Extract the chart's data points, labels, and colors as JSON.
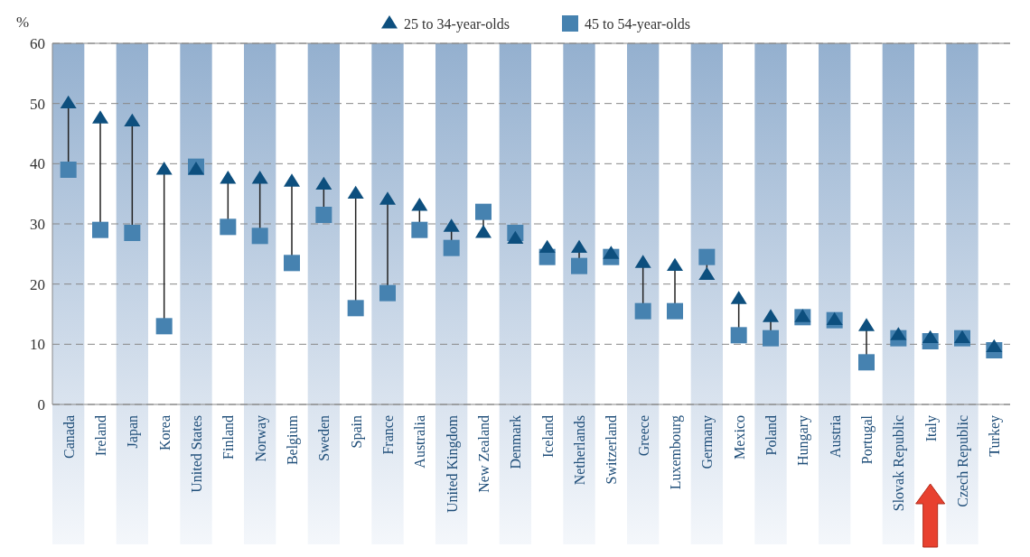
{
  "chart_data": {
    "type": "scatter",
    "ylabel": "%",
    "legend": "top",
    "grid": "y",
    "ylim": [
      0,
      60
    ],
    "yticks": [
      0,
      10,
      20,
      30,
      40,
      50,
      60
    ],
    "categories": [
      "Canada",
      "Ireland",
      "Japan",
      "Korea",
      "United States",
      "Finland",
      "Norway",
      "Belgium",
      "Sweden",
      "Spain",
      "France",
      "Australia",
      "United Kingdom",
      "New Zealand",
      "Denmark",
      "Iceland",
      "Netherlands",
      "Switzerland",
      "Greece",
      "Luxembourg",
      "Germany",
      "Mexico",
      "Poland",
      "Hungary",
      "Austria",
      "Portugal",
      "Slovak Republic",
      "Italy",
      "Czech Republic",
      "Turkey"
    ],
    "bands": [
      {
        "axis": "x",
        "from": "Canada",
        "to": "Canada",
        "color": "#94b0cf"
      },
      {
        "axis": "x",
        "from": "Japan",
        "to": "Japan",
        "color": "#94b0cf"
      },
      {
        "axis": "x",
        "from": "United States",
        "to": "United States",
        "color": "#94b0cf"
      },
      {
        "axis": "x",
        "from": "Norway",
        "to": "Norway",
        "color": "#94b0cf"
      },
      {
        "axis": "x",
        "from": "Sweden",
        "to": "Sweden",
        "color": "#94b0cf"
      },
      {
        "axis": "x",
        "from": "France",
        "to": "France",
        "color": "#94b0cf"
      },
      {
        "axis": "x",
        "from": "United Kingdom",
        "to": "United Kingdom",
        "color": "#94b0cf"
      },
      {
        "axis": "x",
        "from": "Denmark",
        "to": "Denmark",
        "color": "#94b0cf"
      },
      {
        "axis": "x",
        "from": "Netherlands",
        "to": "Netherlands",
        "color": "#94b0cf"
      },
      {
        "axis": "x",
        "from": "Greece",
        "to": "Greece",
        "color": "#94b0cf"
      },
      {
        "axis": "x",
        "from": "Germany",
        "to": "Germany",
        "color": "#94b0cf"
      },
      {
        "axis": "x",
        "from": "Poland",
        "to": "Poland",
        "color": "#94b0cf"
      },
      {
        "axis": "x",
        "from": "Austria",
        "to": "Austria",
        "color": "#94b0cf"
      },
      {
        "axis": "x",
        "from": "Slovak Republic",
        "to": "Slovak Republic",
        "color": "#94b0cf"
      },
      {
        "axis": "x",
        "from": "Czech Republic",
        "to": "Czech Republic",
        "color": "#94b0cf"
      }
    ],
    "series": [
      {
        "name": "25 to 34-year-olds",
        "color": "#0d4f7e",
        "marker": "triangle",
        "values": [
          50,
          47.5,
          47,
          39,
          39,
          37.5,
          37.5,
          37,
          36.5,
          35,
          34,
          33,
          29.5,
          28.5,
          27.5,
          26,
          26,
          25,
          23.5,
          23,
          21.5,
          17.5,
          14.5,
          14.5,
          14,
          13,
          11.5,
          11,
          11,
          9.5
        ]
      },
      {
        "name": "45 to 54-year-olds",
        "color": "#4682b0",
        "marker": "square",
        "values": [
          39,
          29,
          28.5,
          13,
          39.5,
          29.5,
          28,
          23.5,
          31.5,
          16,
          18.5,
          29,
          26,
          32,
          28.5,
          24.5,
          23,
          24.5,
          15.5,
          15.5,
          24.5,
          11.5,
          11,
          14.5,
          14,
          7,
          11,
          10.5,
          11,
          9
        ]
      }
    ]
  }
}
